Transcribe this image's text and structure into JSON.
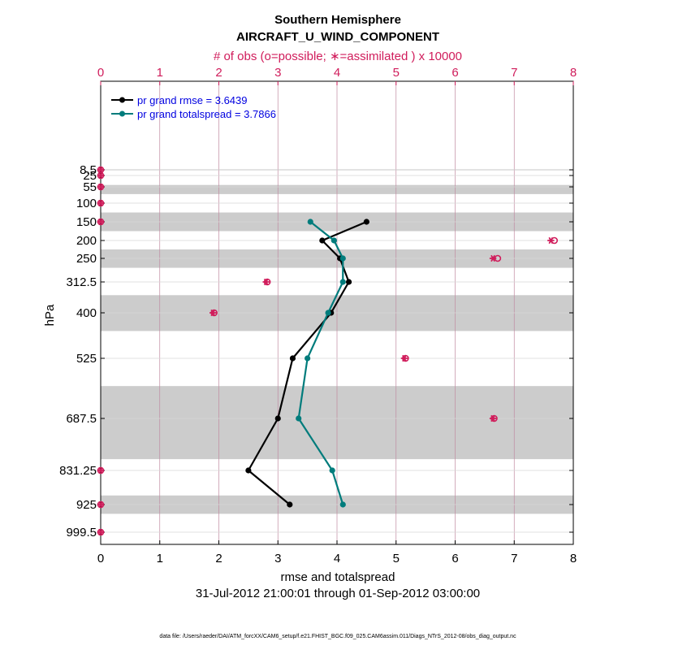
{
  "chart_data": {
    "type": "line",
    "title": "Southern Hemisphere",
    "subtitle": "AIRCRAFT_U_WIND_COMPONENT",
    "top_axis_label": "# of obs (o=possible; ∗=assimilated ) x 10000",
    "xlabel": "rmse and totalspread",
    "ylabel": "hPa",
    "date_range": "31-Jul-2012 21:00:01 through 01-Sep-2012 03:00:00",
    "footnote": "data file: /Users/raeder/DAI/ATM_forcXX/CAM6_setup/f.e21.FHIST_BGC.f09_025.CAM6assim.011/Diags_NTrS_2012-08/obs_diag_output.nc",
    "xlim": [
      0,
      8
    ],
    "x_ticks": [
      "0",
      "1",
      "2",
      "3",
      "4",
      "5",
      "6",
      "7",
      "8"
    ],
    "top_ticks": [
      "0",
      "1",
      "2",
      "3",
      "4",
      "5",
      "6",
      "7",
      "8"
    ],
    "y_levels": [
      8.5,
      25,
      55,
      100,
      150,
      200,
      250,
      312.5,
      400,
      525,
      687.5,
      831.25,
      925,
      999.5
    ],
    "y_tick_labels": [
      "8.5",
      "25",
      "55",
      "100",
      "150",
      "200",
      "250",
      "312.5",
      "400",
      "525",
      "687.5",
      "831.25",
      "925",
      "999.5"
    ],
    "series": [
      {
        "name": "rmse",
        "legend": "pr grand rmse = 3.6439",
        "color": "#000000",
        "points": [
          [
            4.5,
            150
          ],
          [
            3.75,
            200
          ],
          [
            4.05,
            250
          ],
          [
            4.2,
            312.5
          ],
          [
            3.9,
            400
          ],
          [
            3.25,
            525
          ],
          [
            3.0,
            687.5
          ],
          [
            2.5,
            831.25
          ],
          [
            3.2,
            925
          ]
        ]
      },
      {
        "name": "totalspread",
        "legend": "pr grand totalspread = 3.7866",
        "color": "#007c7c",
        "points": [
          [
            3.55,
            150
          ],
          [
            3.95,
            200
          ],
          [
            4.1,
            250
          ],
          [
            4.1,
            312.5
          ],
          [
            3.85,
            400
          ],
          [
            3.5,
            525
          ],
          [
            3.35,
            687.5
          ],
          [
            3.92,
            831.25
          ],
          [
            4.1,
            925
          ]
        ]
      }
    ],
    "obs_counts": {
      "color": "#d01c5b",
      "levels": [
        8.5,
        25,
        55,
        100,
        150,
        200,
        250,
        312.5,
        400,
        525,
        687.5,
        831.25,
        925,
        999.5
      ],
      "possible": [
        0,
        0,
        0,
        0,
        0,
        7.68,
        6.72,
        2.82,
        1.92,
        5.16,
        6.66,
        0,
        0,
        0
      ],
      "assimilated": [
        0,
        0,
        0,
        0,
        0,
        7.62,
        6.64,
        2.8,
        1.9,
        5.14,
        6.64,
        0,
        0,
        0
      ]
    },
    "bands": [
      [
        7,
        10
      ],
      [
        50,
        75
      ],
      [
        125,
        175
      ],
      [
        225,
        275
      ],
      [
        350,
        450
      ],
      [
        600,
        800
      ],
      [
        900,
        950
      ]
    ]
  }
}
